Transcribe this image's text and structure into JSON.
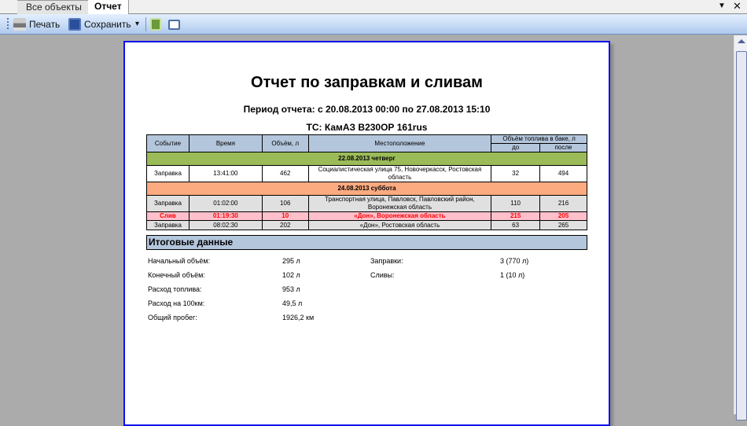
{
  "tabs": [
    {
      "label": "Все объекты",
      "active": false
    },
    {
      "label": "Отчет",
      "active": true
    }
  ],
  "tab_controls": {
    "dropdown": "▼",
    "close": "✕"
  },
  "toolbar": {
    "print_label": "Печать",
    "save_label": "Сохранить",
    "save_dropdown": "▾"
  },
  "report": {
    "title": "Отчет по заправкам и сливам",
    "period": "Период отчета: с 20.08.2013 00:00 по 27.08.2013 15:10",
    "vehicle": "ТС: КамАЗ В230ОР 161rus",
    "columns": {
      "event": "Событие",
      "time": "Время",
      "volume": "Объём, л",
      "location": "Местоположение",
      "tank": "Объём топлива в баке, л",
      "before": "до",
      "after": "после"
    },
    "groups": [
      {
        "date": "22.08.2013 четверг",
        "color": "#9bbb59",
        "rows": [
          {
            "event": "Заправка",
            "time": "13:41:00",
            "volume": "462",
            "location": "Социалистическая улица 75, Новочеркасск, Ростовская область",
            "before": "32",
            "after": "494"
          }
        ]
      },
      {
        "date": "24.08.2013 суббота",
        "color": "#fcaa80",
        "rows": [
          {
            "event": "Заправка",
            "time": "01:02:00",
            "volume": "106",
            "location": "Транспортная улица, Павловск, Павловский район, Воронежская область",
            "before": "110",
            "after": "216"
          },
          {
            "event": "Слив",
            "time": "01:19:30",
            "volume": "10",
            "location": "«Дон», Воронежская область",
            "before": "215",
            "after": "205"
          },
          {
            "event": "Заправка",
            "time": "08:02:30",
            "volume": "202",
            "location": "«Дон», Ростовская область",
            "before": "63",
            "after": "265"
          }
        ]
      }
    ],
    "summary": {
      "title": "Итоговые данные",
      "left": [
        {
          "label": "Начальный объём:",
          "value": "295 л"
        },
        {
          "label": "Конечный объём:",
          "value": "102 л"
        },
        {
          "label": "Расход топлива:",
          "value": "953 л"
        },
        {
          "label": "Расход на 100км:",
          "value": "49,5 л"
        },
        {
          "label": "Общий пробег:",
          "value": "1926,2 км"
        }
      ],
      "right": [
        {
          "label": "Заправки:",
          "value": "3 (770 л)"
        },
        {
          "label": "Сливы:",
          "value": "1 (10 л)"
        }
      ]
    }
  }
}
